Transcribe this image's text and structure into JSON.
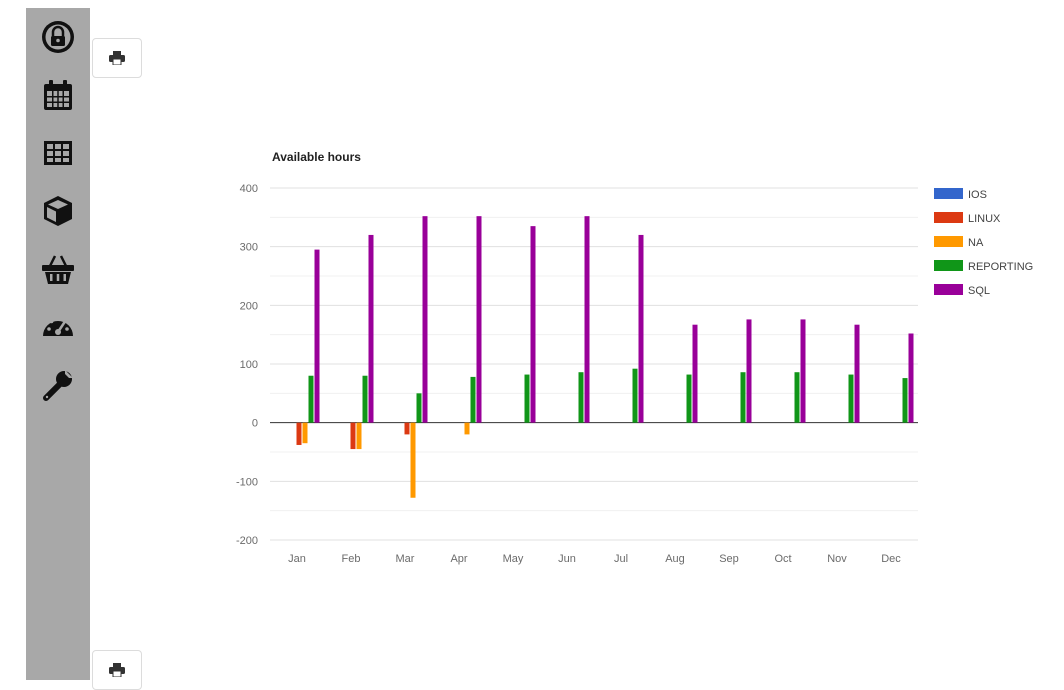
{
  "sidebar": {
    "items": [
      {
        "icon": "lock-icon"
      },
      {
        "icon": "calendar-icon"
      },
      {
        "icon": "table-icon"
      },
      {
        "icon": "cube-icon"
      },
      {
        "icon": "basket-icon"
      },
      {
        "icon": "dashboard-icon"
      },
      {
        "icon": "wrench-icon"
      }
    ]
  },
  "toolbar": {
    "print_icon": "print-icon"
  },
  "chart_data": {
    "type": "bar",
    "title": "Available hours",
    "xlabel": "",
    "ylabel": "",
    "categories": [
      "Jan",
      "Feb",
      "Mar",
      "Apr",
      "May",
      "Jun",
      "Jul",
      "Aug",
      "Sep",
      "Oct",
      "Nov",
      "Dec"
    ],
    "ylim": [
      -200,
      400
    ],
    "yticks": [
      400,
      300,
      200,
      100,
      0,
      -100,
      -200
    ],
    "grid": true,
    "legend_position": "right",
    "series": [
      {
        "name": "IOS",
        "color": "#3366cc",
        "values": [
          0,
          0,
          0,
          0,
          0,
          0,
          0,
          0,
          0,
          0,
          0,
          0
        ]
      },
      {
        "name": "LINUX",
        "color": "#dc3912",
        "values": [
          -38,
          -45,
          -20,
          0,
          0,
          0,
          0,
          0,
          0,
          0,
          0,
          0
        ]
      },
      {
        "name": "NA",
        "color": "#ff9900",
        "values": [
          -35,
          -45,
          -128,
          -20,
          0,
          0,
          0,
          0,
          0,
          0,
          0,
          0
        ]
      },
      {
        "name": "REPORTING",
        "color": "#109618",
        "values": [
          80,
          80,
          50,
          78,
          82,
          86,
          92,
          82,
          86,
          86,
          82,
          76
        ]
      },
      {
        "name": "SQL",
        "color": "#990099",
        "values": [
          295,
          320,
          352,
          352,
          335,
          352,
          320,
          167,
          176,
          176,
          167,
          152
        ]
      }
    ]
  }
}
